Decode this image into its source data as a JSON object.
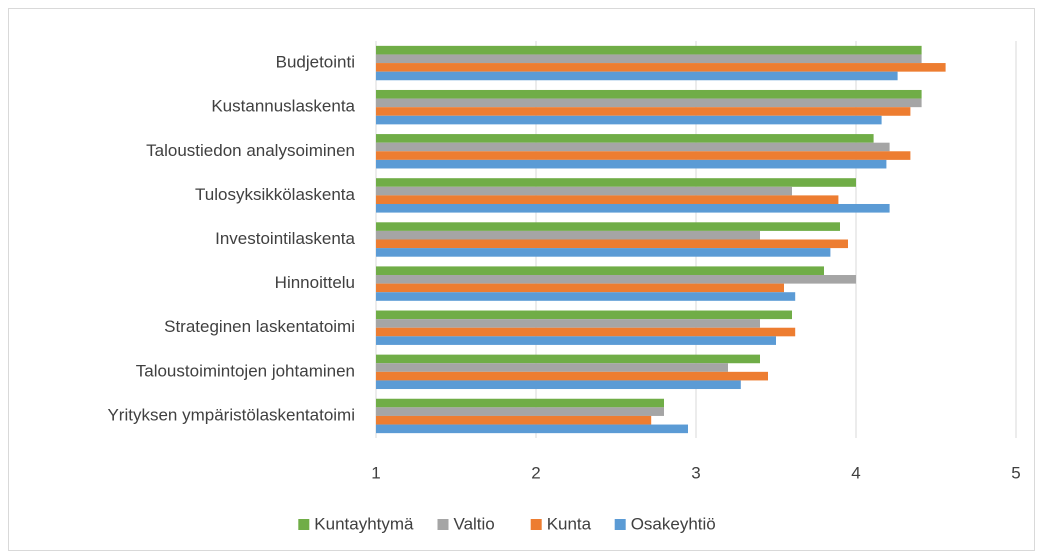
{
  "chart_data": {
    "type": "barh",
    "categories": [
      "Budjetointi",
      "Kustannuslaskenta",
      "Taloustiedon analysoiminen",
      "Tulosyksikkölaskenta",
      "Investointilaskenta",
      "Hinnoittelu",
      "Strateginen laskentatoimi",
      "Taloustoimintojen johtaminen",
      "Yrityksen ympäristölaskentatoimi"
    ],
    "series": [
      {
        "name": "Kuntayhtymä",
        "color": "#70ad47",
        "values": [
          4.41,
          4.41,
          4.11,
          4.0,
          3.9,
          3.8,
          3.6,
          3.4,
          2.8
        ]
      },
      {
        "name": "Valtio",
        "color": "#a5a5a5",
        "values": [
          4.41,
          4.41,
          4.21,
          3.6,
          3.4,
          4.0,
          3.4,
          3.2,
          2.8
        ]
      },
      {
        "name": "Kunta",
        "color": "#ed7d31",
        "values": [
          4.56,
          4.34,
          4.34,
          3.89,
          3.95,
          3.55,
          3.62,
          3.45,
          2.72
        ]
      },
      {
        "name": "Osakeyhtiö",
        "color": "#5b9bd5",
        "values": [
          4.26,
          4.16,
          4.19,
          4.21,
          3.84,
          3.62,
          3.5,
          3.28,
          2.95
        ]
      }
    ],
    "xlim": [
      1,
      5
    ],
    "xticks": [
      1,
      2,
      3,
      4,
      5
    ],
    "grid": true,
    "legend": "bottom"
  }
}
